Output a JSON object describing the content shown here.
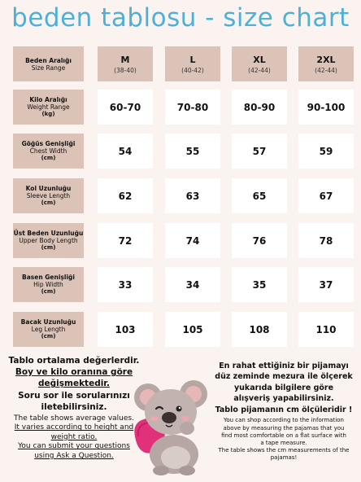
{
  "title": "beden tablosu - size chart",
  "header": {
    "label_tr": "Beden Aralığı",
    "label_en": "Size Range",
    "sizes": [
      {
        "size": "M",
        "range": "(38-40)"
      },
      {
        "size": "L",
        "range": "(40-42)"
      },
      {
        "size": "XL",
        "range": "(42-44)"
      },
      {
        "size": "2XL",
        "range": "(42-44)"
      }
    ]
  },
  "rows": [
    {
      "label_tr": "Kilo Aralığı",
      "label_en": "Weight Range",
      "unit": "(kg)",
      "values": [
        "60-70",
        "70-80",
        "80-90",
        "90-100"
      ]
    },
    {
      "label_tr": "Göğüs Genişliği",
      "label_en": "Chest Width",
      "unit": "(cm)",
      "values": [
        "54",
        "55",
        "57",
        "59"
      ]
    },
    {
      "label_tr": "Kol Uzunluğu",
      "label_en": "Sleeve Length",
      "unit": "(cm)",
      "values": [
        "62",
        "63",
        "65",
        "67"
      ]
    },
    {
      "label_tr": "Üst Beden Uzunluğu",
      "label_en": "Upper Body Length",
      "unit": "(cm)",
      "values": [
        "72",
        "74",
        "76",
        "78"
      ]
    },
    {
      "label_tr": "Basen Genişliği",
      "label_en": "Hip Width",
      "unit": "(cm)",
      "values": [
        "33",
        "34",
        "35",
        "37"
      ]
    },
    {
      "label_tr": "Bacak Uzunluğu",
      "label_en": "Leg Length",
      "unit": "(cm)",
      "values": [
        "103",
        "105",
        "108",
        "110"
      ]
    }
  ],
  "notes_left": {
    "tr_1": "Tablo ortalama değerlerdir.",
    "tr_2": "Boy ve kilo oranına göre",
    "tr_3": "değişmektedir.",
    "tr_4": "Soru sor ile sorularınızı",
    "tr_5": "iletebilirsiniz.",
    "en_1": "The table shows average values.",
    "en_2": "It varies according to height and",
    "en_3": "weight ratio.",
    "en_4": "You can submit your questions",
    "en_5": "using Ask a Question."
  },
  "notes_right": {
    "tr_1": "En rahat ettiğiniz bir pijamayı",
    "tr_2": "düz zeminde mezura ile ölçerek",
    "tr_3": "yukarıda bilgilere göre",
    "tr_4": "alışveriş yapabilirsiniz.",
    "tr_5": "Tablo pijamanın cm ölçüleridir !",
    "en_1": "You can shop according to the information",
    "en_2": "above by measuring the pajamas that you",
    "en_3": "find most comfortable on a flat surface with",
    "en_4": "a tape measure.",
    "en_5": "The table shows the cm measurements of the",
    "en_6": "pajamas!"
  },
  "colors": {
    "title": "#4fb0d6",
    "label_bg": "#dcc3b8",
    "page_bg": "#faf3ef",
    "cell_bg": "#ffffff"
  },
  "illustration": "koala-with-pink-pillow"
}
